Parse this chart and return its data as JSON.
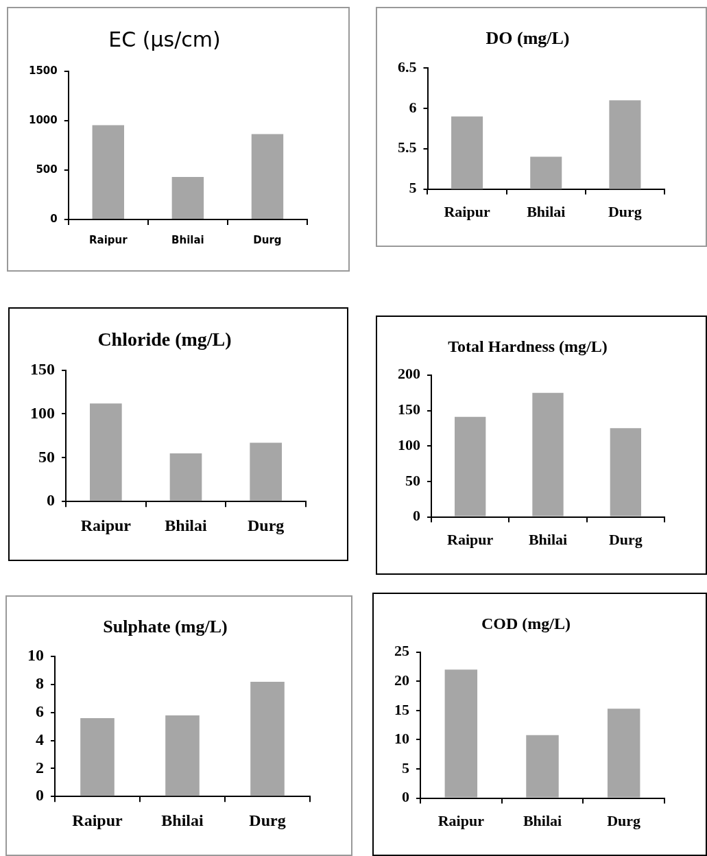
{
  "chart_data": [
    {
      "type": "bar",
      "title": "EC (µs/cm)",
      "categories": [
        "Raipur",
        "Bhilai",
        "Durg"
      ],
      "values": [
        955,
        430,
        865
      ],
      "color": "#a6a6a6",
      "ylim": [
        0,
        1500
      ],
      "yticks": [
        0,
        500,
        1000,
        1500
      ]
    },
    {
      "type": "bar",
      "title": "DO (mg/L)",
      "categories": [
        "Raipur",
        "Bhilai",
        "Durg"
      ],
      "values": [
        5.9,
        5.4,
        6.1
      ],
      "color": "#a6a6a6",
      "ylim": [
        5,
        6.5
      ],
      "yticks": [
        5,
        5.5,
        6,
        6.5
      ]
    },
    {
      "type": "bar",
      "title": "Chloride (mg/L)",
      "categories": [
        "Raipur",
        "Bhilai",
        "Durg"
      ],
      "values": [
        112,
        55,
        67
      ],
      "color": "#a6a6a6",
      "ylim": [
        0,
        150
      ],
      "yticks": [
        0,
        50,
        100,
        150
      ]
    },
    {
      "type": "bar",
      "title": "Total Hardness (mg/L)",
      "categories": [
        "Raipur",
        "Bhilai",
        "Durg"
      ],
      "values": [
        141,
        175,
        125
      ],
      "color": "#a6a6a6",
      "ylim": [
        0,
        200
      ],
      "yticks": [
        0,
        50,
        100,
        150,
        200
      ]
    },
    {
      "type": "bar",
      "title": "Sulphate (mg/L)",
      "categories": [
        "Raipur",
        "Bhilai",
        "Durg"
      ],
      "values": [
        5.6,
        5.8,
        8.2
      ],
      "color": "#a6a6a6",
      "ylim": [
        0,
        10
      ],
      "yticks": [
        0,
        2,
        4,
        6,
        8,
        10
      ]
    },
    {
      "type": "bar",
      "title": "COD (mg/L)",
      "categories": [
        "Raipur",
        "Bhilai",
        "Durg"
      ],
      "values": [
        22,
        10.8,
        15.3
      ],
      "color": "#a6a6a6",
      "ylim": [
        0,
        25
      ],
      "yticks": [
        0,
        5,
        10,
        15,
        20,
        25
      ]
    }
  ]
}
